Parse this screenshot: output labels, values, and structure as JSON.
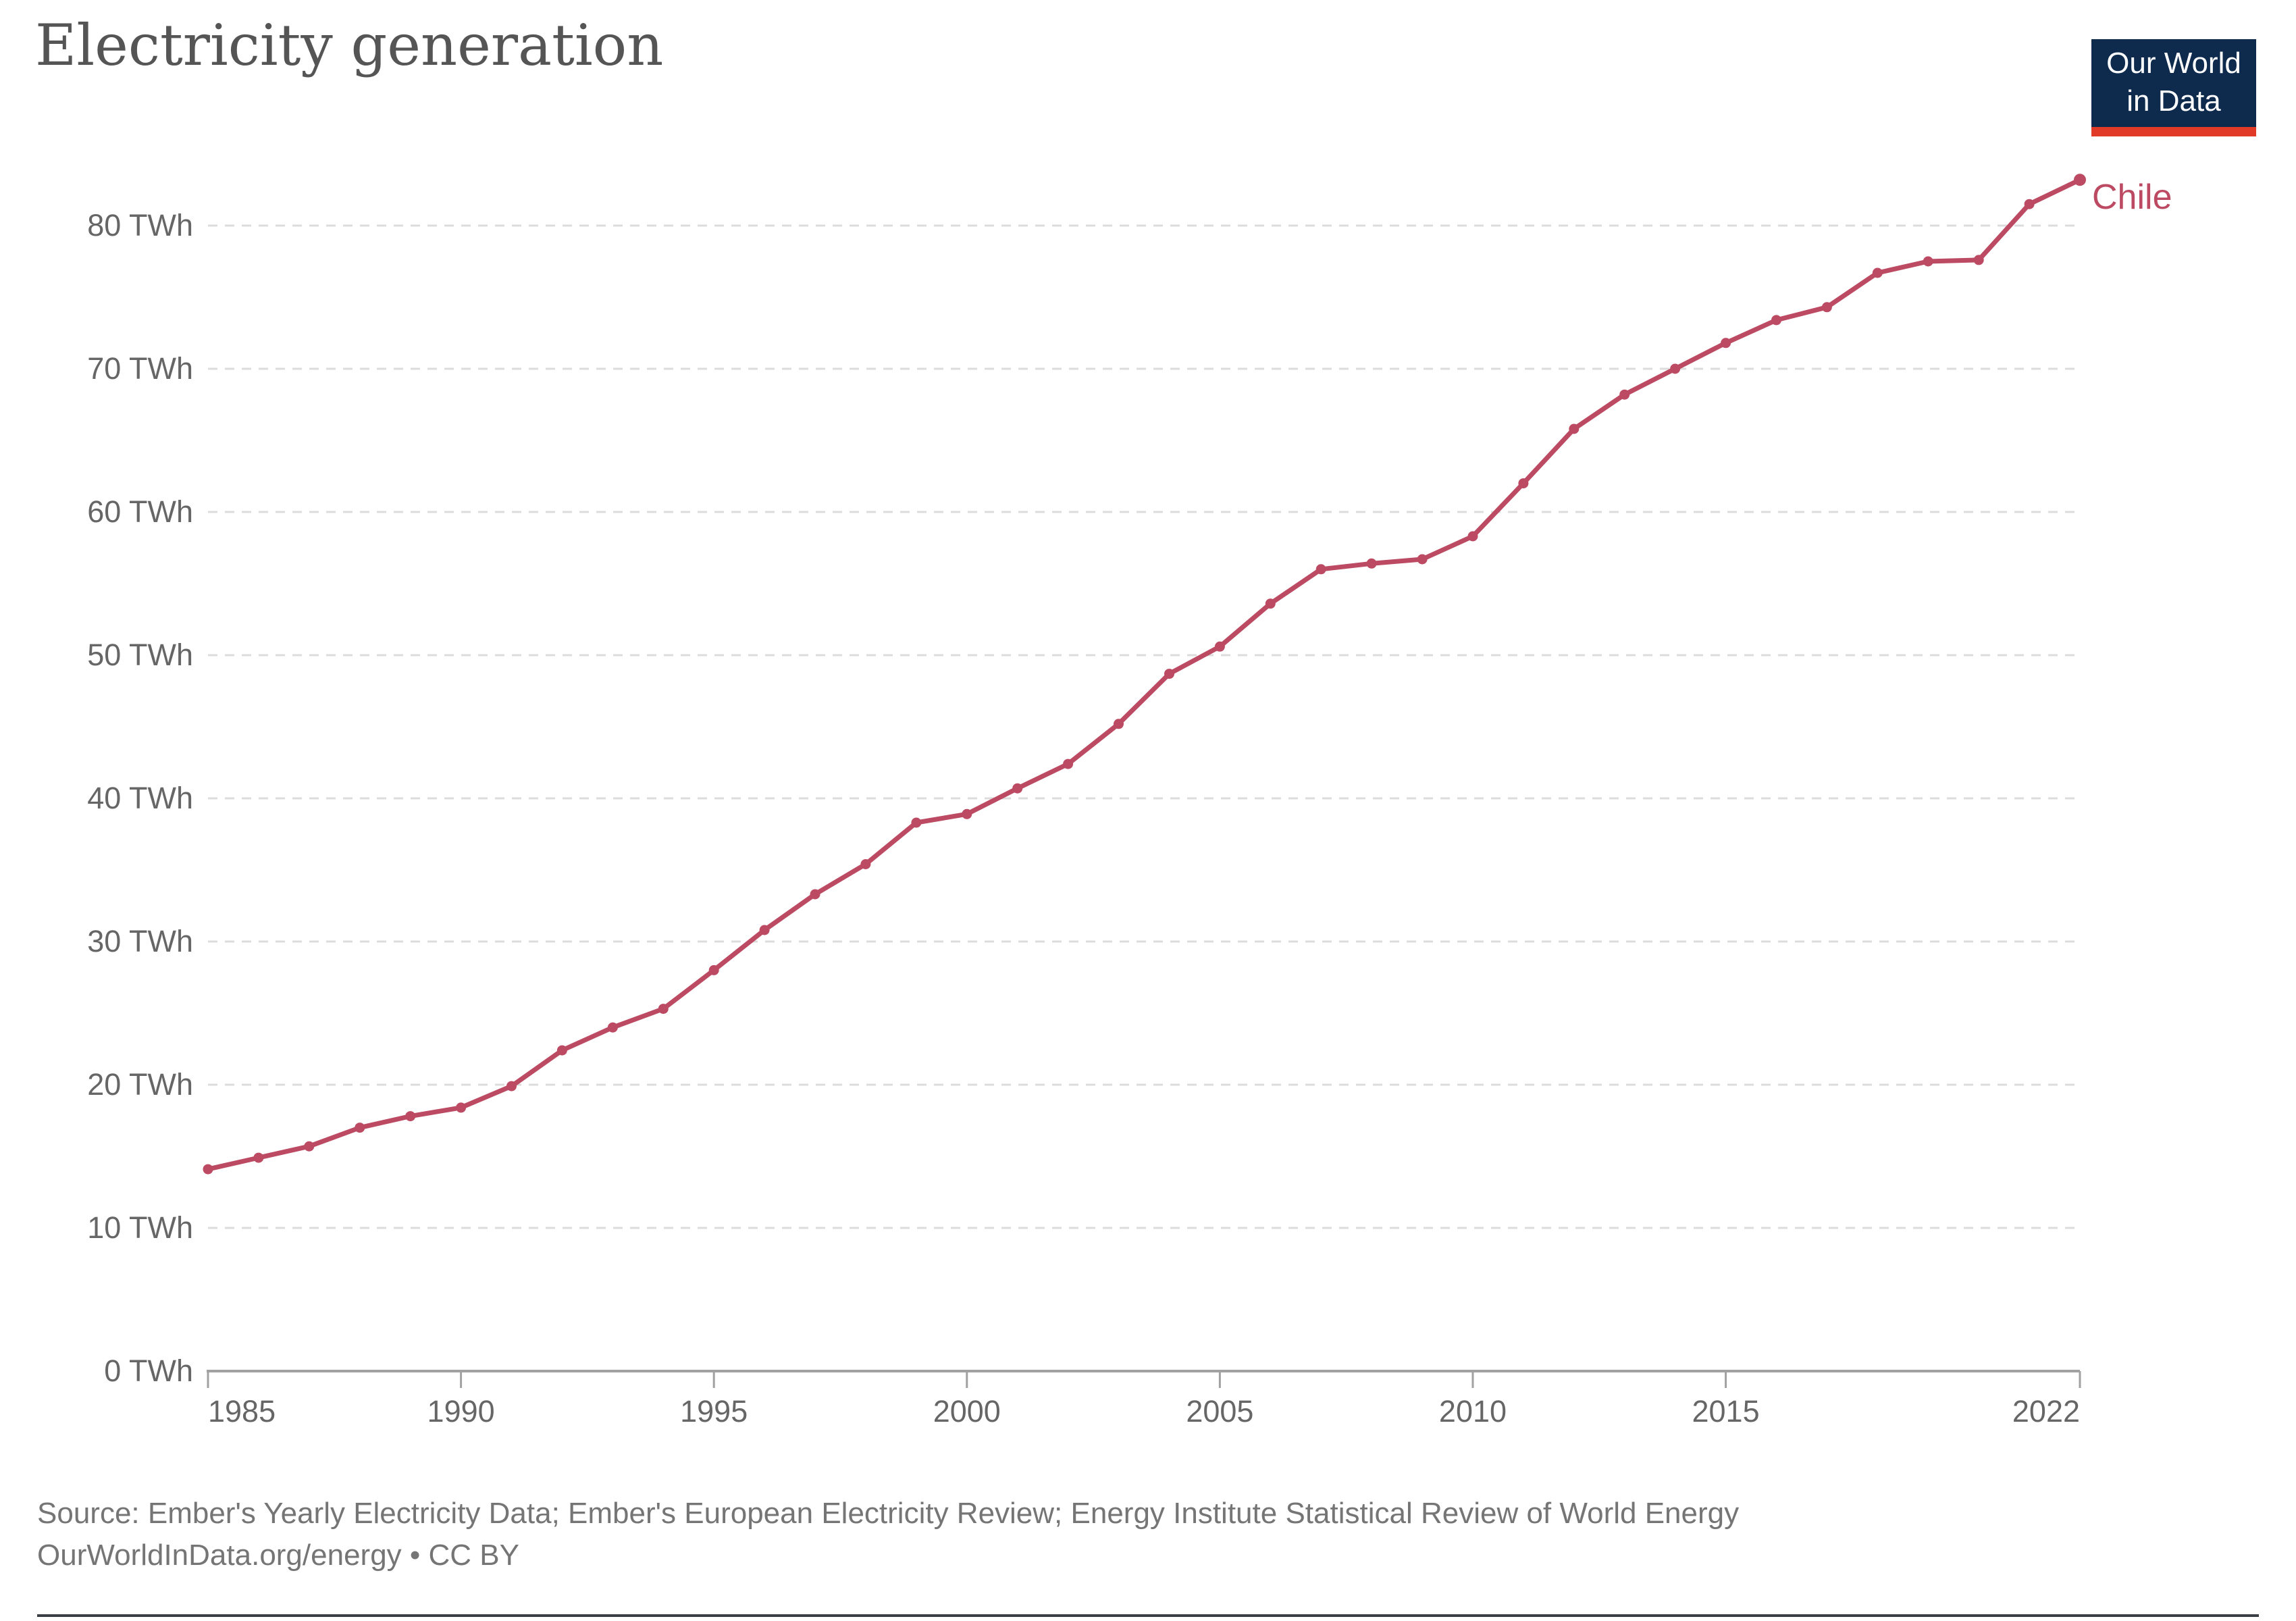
{
  "title": "Electricity generation",
  "logo": {
    "line1": "Our World",
    "line2": "in Data"
  },
  "series_label": "Chile",
  "source": {
    "line1": "Source: Ember's Yearly Electricity Data; Ember's European Electricity Review; Energy Institute Statistical Review of World Energy",
    "line2": "OurWorldInData.org/energy • CC BY"
  },
  "colors": {
    "line": "#bc4a62",
    "logo_navy": "#0e2a4d",
    "logo_red": "#e13b28",
    "grid": "#dcdcdc",
    "axis": "#a1a1a1",
    "tick_text": "#666666",
    "title_text": "#555555",
    "source_text": "#757575"
  },
  "chart_data": {
    "type": "line",
    "title": "Electricity generation",
    "unit": "TWh",
    "grid": "dashed-horizontal",
    "legend_position": "end-of-line",
    "x_range": [
      1985,
      2022
    ],
    "ylim": [
      0,
      80
    ],
    "x_tick_years": [
      1985,
      1990,
      1995,
      2000,
      2005,
      2010,
      2015,
      2022
    ],
    "x_tick_labels": [
      "1985",
      "1990",
      "1995",
      "2000",
      "2005",
      "2010",
      "2015",
      "2022"
    ],
    "y_tick_values": [
      0,
      10,
      20,
      30,
      40,
      50,
      60,
      70,
      80
    ],
    "y_tick_labels": [
      "0 TWh",
      "10 TWh",
      "20 TWh",
      "30 TWh",
      "40 TWh",
      "50 TWh",
      "60 TWh",
      "70 TWh",
      "80 TWh"
    ],
    "series": [
      {
        "name": "Chile",
        "color": "#bc4a62",
        "x": [
          1985,
          1986,
          1987,
          1988,
          1989,
          1990,
          1991,
          1992,
          1993,
          1994,
          1995,
          1996,
          1997,
          1998,
          1999,
          2000,
          2001,
          2002,
          2003,
          2004,
          2005,
          2006,
          2007,
          2008,
          2009,
          2010,
          2011,
          2012,
          2013,
          2014,
          2015,
          2016,
          2017,
          2018,
          2019,
          2020,
          2021,
          2022
        ],
        "values": [
          14.1,
          14.9,
          15.7,
          17.0,
          17.8,
          18.4,
          19.9,
          22.4,
          24.0,
          25.3,
          28.0,
          30.8,
          33.3,
          35.4,
          38.3,
          38.9,
          40.7,
          42.4,
          45.2,
          48.7,
          50.6,
          53.6,
          56.0,
          56.4,
          56.7,
          58.3,
          62.0,
          65.8,
          68.2,
          70.0,
          71.8,
          73.4,
          74.3,
          76.7,
          77.5,
          77.6,
          81.5,
          83.2
        ]
      }
    ]
  }
}
